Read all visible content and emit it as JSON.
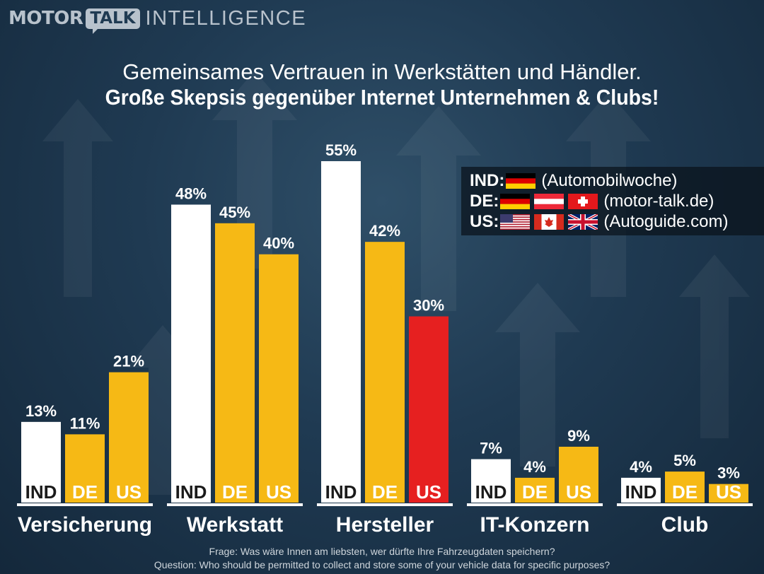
{
  "brand": {
    "motor": "MOTOR",
    "talk": "TALK",
    "intelligence": "INTELLIGENCE"
  },
  "title": "Gemeinsames Vertrauen in Werkstätten und Händler.",
  "subtitle": "Große Skepsis gegenüber Internet Unternehmen & Clubs!",
  "legend": {
    "rows": [
      {
        "code": "IND:",
        "flags": [
          "de-flag-icon"
        ],
        "source": "(Automobilwoche)"
      },
      {
        "code": "DE:",
        "flags": [
          "de-flag-icon",
          "at-flag-icon",
          "ch-flag-icon"
        ],
        "source": "(motor-talk.de)"
      },
      {
        "code": "US:",
        "flags": [
          "us-flag-icon",
          "ca-flag-icon",
          "uk-flag-icon"
        ],
        "source": "(Autoguide.com)"
      }
    ]
  },
  "footnote": {
    "de": "Frage: Was wäre Innen am liebsten, wer dürfte Ihre Fahrzeugdaten speichern?",
    "en": "Question: Who should be permitted to collect and store some of your vehicle data for specific purposes?"
  },
  "colors": {
    "IND": "#ffffff",
    "DE": "#f6b915",
    "US": "#f6b915",
    "US_highlight": "#e62020"
  },
  "chart_data": {
    "type": "bar",
    "categories": [
      "Versicherung",
      "Werkstatt",
      "Hersteller",
      "IT-Konzern",
      "Club"
    ],
    "series": [
      {
        "name": "IND",
        "values": [
          13,
          48,
          55,
          7,
          4
        ]
      },
      {
        "name": "DE",
        "values": [
          11,
          45,
          42,
          4,
          5
        ]
      },
      {
        "name": "US",
        "values": [
          21,
          40,
          30,
          9,
          3
        ]
      }
    ],
    "value_suffix": "%",
    "highlight": {
      "series": "US",
      "category": "Hersteller",
      "color": "#e62020"
    },
    "legend_position": "top-right",
    "grid": false
  }
}
